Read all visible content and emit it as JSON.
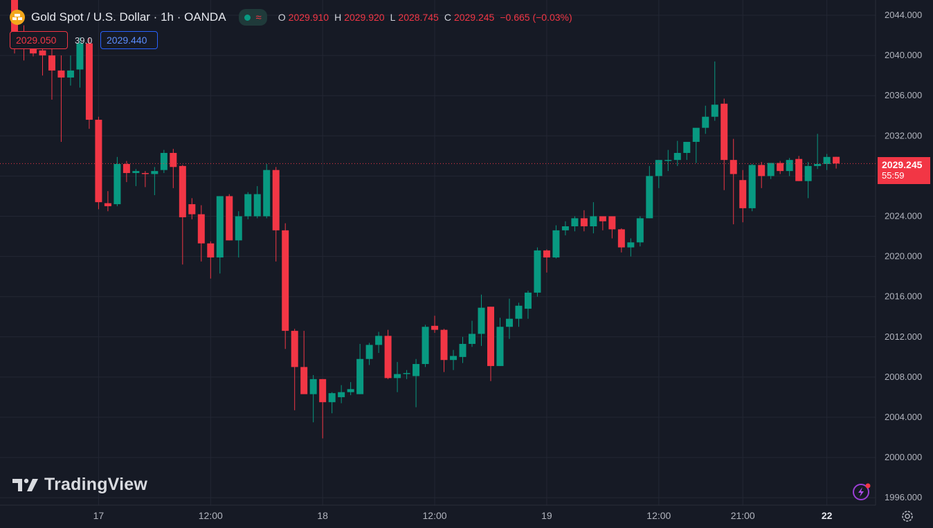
{
  "header": {
    "symbol_title": "Gold Spot / U.S. Dollar · 1h · OANDA",
    "status_icon": "market-open-dot",
    "ohlc": {
      "o_label": "O",
      "o_value": "2029.910",
      "h_label": "H",
      "h_value": "2029.920",
      "l_label": "L",
      "l_value": "2028.745",
      "c_label": "C",
      "c_value": "2029.245",
      "change": "−0.665 (−0.03%)"
    }
  },
  "trade_panel": {
    "sell_price": "2029.050",
    "spread": "39.0",
    "buy_price": "2029.440"
  },
  "last_price_label": {
    "price": "2029.245",
    "countdown": "55:59"
  },
  "branding": {
    "logo_text": "TradingView"
  },
  "colors": {
    "background": "#161a25",
    "up": "#089981",
    "down": "#f23645",
    "grid": "#232734",
    "axis_text": "#b2b5be"
  },
  "chart_data": {
    "type": "candlestick",
    "ylim": [
      1995,
      2045
    ],
    "y_ticks": [
      "2044.000",
      "2040.000",
      "2036.000",
      "2032.000",
      "2028.000",
      "2024.000",
      "2020.000",
      "2016.000",
      "2012.000",
      "2008.000",
      "2004.000",
      "2000.000",
      "1996.000"
    ],
    "x_ticks": [
      {
        "label": "17",
        "index": 9,
        "bold": false
      },
      {
        "label": "12:00",
        "index": 21,
        "bold": false
      },
      {
        "label": "18",
        "index": 33,
        "bold": false
      },
      {
        "label": "12:00",
        "index": 45,
        "bold": false
      },
      {
        "label": "19",
        "index": 57,
        "bold": false
      },
      {
        "label": "12:00",
        "index": 69,
        "bold": false
      },
      {
        "label": "21:00",
        "index": 78,
        "bold": false
      },
      {
        "label": "22",
        "index": 87,
        "bold": true
      }
    ],
    "last_price": 2029.245,
    "grid": true,
    "candles": [
      {
        "o": 2045.9,
        "h": 2046.0,
        "l": 2040.2,
        "c": 2042.0
      },
      {
        "o": 2042.0,
        "h": 2043.0,
        "l": 2039.5,
        "c": 2041.3
      },
      {
        "o": 2041.5,
        "h": 2042.2,
        "l": 2039.9,
        "c": 2040.2
      },
      {
        "o": 2040.5,
        "h": 2041.0,
        "l": 2038.0,
        "c": 2040.0
      },
      {
        "o": 2040.0,
        "h": 2041.5,
        "l": 2035.6,
        "c": 2038.5
      },
      {
        "o": 2038.5,
        "h": 2040.0,
        "l": 2031.4,
        "c": 2037.8
      },
      {
        "o": 2037.8,
        "h": 2040.0,
        "l": 2037.0,
        "c": 2038.5
      },
      {
        "o": 2038.6,
        "h": 2041.8,
        "l": 2036.8,
        "c": 2041.2
      },
      {
        "o": 2041.2,
        "h": 2041.8,
        "l": 2032.7,
        "c": 2033.6
      },
      {
        "o": 2033.6,
        "h": 2033.9,
        "l": 2024.7,
        "c": 2025.4
      },
      {
        "o": 2025.3,
        "h": 2026.5,
        "l": 2024.5,
        "c": 2025.0
      },
      {
        "o": 2025.2,
        "h": 2029.9,
        "l": 2025.0,
        "c": 2029.2
      },
      {
        "o": 2029.2,
        "h": 2029.5,
        "l": 2027.4,
        "c": 2028.3
      },
      {
        "o": 2028.3,
        "h": 2028.7,
        "l": 2027.0,
        "c": 2028.5
      },
      {
        "o": 2028.3,
        "h": 2028.5,
        "l": 2026.9,
        "c": 2028.2
      },
      {
        "o": 2028.2,
        "h": 2028.9,
        "l": 2026.1,
        "c": 2028.5
      },
      {
        "o": 2028.6,
        "h": 2030.6,
        "l": 2028.3,
        "c": 2030.3
      },
      {
        "o": 2030.3,
        "h": 2030.7,
        "l": 2026.8,
        "c": 2028.9
      },
      {
        "o": 2029.0,
        "h": 2029.1,
        "l": 2019.2,
        "c": 2023.9
      },
      {
        "o": 2025.2,
        "h": 2025.8,
        "l": 2023.7,
        "c": 2024.2
      },
      {
        "o": 2024.2,
        "h": 2025.1,
        "l": 2019.5,
        "c": 2021.3
      },
      {
        "o": 2021.3,
        "h": 2021.5,
        "l": 2017.8,
        "c": 2019.9
      },
      {
        "o": 2019.9,
        "h": 2026.0,
        "l": 2018.3,
        "c": 2026.0
      },
      {
        "o": 2026.0,
        "h": 2026.2,
        "l": 2021.6,
        "c": 2021.6
      },
      {
        "o": 2021.6,
        "h": 2024.5,
        "l": 2019.9,
        "c": 2024.0
      },
      {
        "o": 2024.0,
        "h": 2026.4,
        "l": 2023.7,
        "c": 2026.2
      },
      {
        "o": 2024.0,
        "h": 2027.0,
        "l": 2023.8,
        "c": 2026.2
      },
      {
        "o": 2024.0,
        "h": 2029.2,
        "l": 2023.8,
        "c": 2028.6
      },
      {
        "o": 2028.6,
        "h": 2028.9,
        "l": 2019.5,
        "c": 2022.6
      },
      {
        "o": 2022.6,
        "h": 2023.3,
        "l": 2010.8,
        "c": 2012.6
      },
      {
        "o": 2012.6,
        "h": 2012.8,
        "l": 2004.7,
        "c": 2009.0
      },
      {
        "o": 2009.0,
        "h": 2012.6,
        "l": 2006.5,
        "c": 2006.3
      },
      {
        "o": 2006.3,
        "h": 2008.2,
        "l": 2003.5,
        "c": 2007.8
      },
      {
        "o": 2007.8,
        "h": 2007.8,
        "l": 2001.9,
        "c": 2005.5
      },
      {
        "o": 2005.5,
        "h": 2006.5,
        "l": 2004.4,
        "c": 2006.4
      },
      {
        "o": 2006.0,
        "h": 2007.2,
        "l": 2005.4,
        "c": 2006.5
      },
      {
        "o": 2006.5,
        "h": 2007.5,
        "l": 2006.2,
        "c": 2006.8
      },
      {
        "o": 2006.3,
        "h": 2011.3,
        "l": 2006.3,
        "c": 2009.8
      },
      {
        "o": 2009.8,
        "h": 2011.4,
        "l": 2009.2,
        "c": 2011.2
      },
      {
        "o": 2011.2,
        "h": 2012.5,
        "l": 2010.4,
        "c": 2012.1
      },
      {
        "o": 2012.1,
        "h": 2012.7,
        "l": 2007.8,
        "c": 2007.9
      },
      {
        "o": 2007.9,
        "h": 2009.5,
        "l": 2006.5,
        "c": 2008.3
      },
      {
        "o": 2008.3,
        "h": 2008.7,
        "l": 2007.8,
        "c": 2008.4
      },
      {
        "o": 2008.1,
        "h": 2009.8,
        "l": 2005.0,
        "c": 2009.3
      },
      {
        "o": 2009.3,
        "h": 2013.2,
        "l": 2009.0,
        "c": 2013.0
      },
      {
        "o": 2013.1,
        "h": 2014.1,
        "l": 2012.4,
        "c": 2012.7
      },
      {
        "o": 2012.7,
        "h": 2012.8,
        "l": 2008.5,
        "c": 2009.7
      },
      {
        "o": 2009.7,
        "h": 2010.7,
        "l": 2008.7,
        "c": 2010.1
      },
      {
        "o": 2010.0,
        "h": 2012.0,
        "l": 2009.4,
        "c": 2011.3
      },
      {
        "o": 2011.3,
        "h": 2013.6,
        "l": 2011.0,
        "c": 2012.3
      },
      {
        "o": 2012.3,
        "h": 2016.2,
        "l": 2011.1,
        "c": 2014.9
      },
      {
        "o": 2015.0,
        "h": 2015.0,
        "l": 2007.6,
        "c": 2009.1
      },
      {
        "o": 2009.1,
        "h": 2013.9,
        "l": 2009.1,
        "c": 2013.0
      },
      {
        "o": 2013.0,
        "h": 2015.8,
        "l": 2011.8,
        "c": 2013.8
      },
      {
        "o": 2013.8,
        "h": 2015.4,
        "l": 2013.0,
        "c": 2015.1
      },
      {
        "o": 2014.8,
        "h": 2016.6,
        "l": 2013.8,
        "c": 2016.4
      },
      {
        "o": 2016.4,
        "h": 2020.9,
        "l": 2016.0,
        "c": 2020.6
      },
      {
        "o": 2020.6,
        "h": 2020.7,
        "l": 2018.4,
        "c": 2019.9
      },
      {
        "o": 2019.9,
        "h": 2023.1,
        "l": 2019.8,
        "c": 2022.6
      },
      {
        "o": 2022.6,
        "h": 2023.5,
        "l": 2022.1,
        "c": 2023.0
      },
      {
        "o": 2023.0,
        "h": 2024.0,
        "l": 2022.5,
        "c": 2023.8
      },
      {
        "o": 2023.8,
        "h": 2024.6,
        "l": 2022.5,
        "c": 2023.0
      },
      {
        "o": 2023.0,
        "h": 2025.4,
        "l": 2022.3,
        "c": 2024.0
      },
      {
        "o": 2024.0,
        "h": 2024.0,
        "l": 2022.6,
        "c": 2023.5
      },
      {
        "o": 2024.0,
        "h": 2024.0,
        "l": 2021.8,
        "c": 2022.7
      },
      {
        "o": 2022.7,
        "h": 2022.8,
        "l": 2020.4,
        "c": 2020.9
      },
      {
        "o": 2020.9,
        "h": 2021.8,
        "l": 2020.0,
        "c": 2021.4
      },
      {
        "o": 2021.4,
        "h": 2024.0,
        "l": 2021.0,
        "c": 2023.8
      },
      {
        "o": 2023.8,
        "h": 2029.0,
        "l": 2023.8,
        "c": 2028.0
      },
      {
        "o": 2028.0,
        "h": 2029.6,
        "l": 2026.8,
        "c": 2029.6
      },
      {
        "o": 2029.5,
        "h": 2030.6,
        "l": 2028.5,
        "c": 2029.6
      },
      {
        "o": 2029.6,
        "h": 2031.5,
        "l": 2029.0,
        "c": 2030.3
      },
      {
        "o": 2030.3,
        "h": 2031.0,
        "l": 2029.6,
        "c": 2031.4
      },
      {
        "o": 2031.4,
        "h": 2032.6,
        "l": 2029.3,
        "c": 2032.8
      },
      {
        "o": 2032.8,
        "h": 2035.0,
        "l": 2032.2,
        "c": 2033.9
      },
      {
        "o": 2033.9,
        "h": 2039.4,
        "l": 2033.5,
        "c": 2035.1
      },
      {
        "o": 2035.2,
        "h": 2035.7,
        "l": 2026.6,
        "c": 2029.6
      },
      {
        "o": 2029.6,
        "h": 2031.7,
        "l": 2023.2,
        "c": 2028.2
      },
      {
        "o": 2027.6,
        "h": 2028.6,
        "l": 2023.4,
        "c": 2024.8
      },
      {
        "o": 2024.8,
        "h": 2029.2,
        "l": 2024.5,
        "c": 2029.1
      },
      {
        "o": 2029.1,
        "h": 2029.4,
        "l": 2026.8,
        "c": 2028.0
      },
      {
        "o": 2028.0,
        "h": 2029.3,
        "l": 2027.7,
        "c": 2029.3
      },
      {
        "o": 2029.3,
        "h": 2029.5,
        "l": 2028.2,
        "c": 2028.5
      },
      {
        "o": 2028.5,
        "h": 2029.8,
        "l": 2028.0,
        "c": 2029.6
      },
      {
        "o": 2029.7,
        "h": 2030.0,
        "l": 2027.5,
        "c": 2027.5
      },
      {
        "o": 2027.5,
        "h": 2029.4,
        "l": 2025.8,
        "c": 2029.0
      },
      {
        "o": 2029.0,
        "h": 2032.2,
        "l": 2028.7,
        "c": 2029.2
      },
      {
        "o": 2029.2,
        "h": 2030.2,
        "l": 2028.6,
        "c": 2029.9
      },
      {
        "o": 2029.91,
        "h": 2029.92,
        "l": 2028.745,
        "c": 2029.245
      }
    ]
  }
}
